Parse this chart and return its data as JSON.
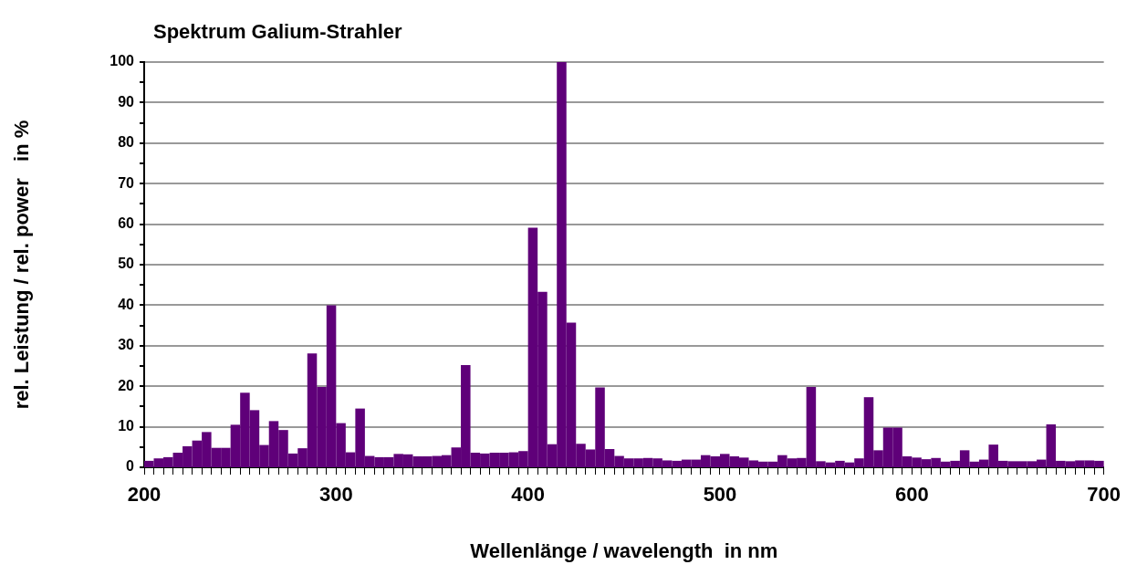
{
  "chart_data": {
    "type": "histogram",
    "title": "Spektrum Galium-Strahler",
    "xlabel": "Wellenlänge / wavelength  in nm",
    "ylabel": "rel. Leistung / rel. power   in %",
    "bins": [
      200,
      205,
      210,
      215,
      220,
      225,
      230,
      235,
      240,
      245,
      250,
      255,
      260,
      265,
      270,
      275,
      280,
      285,
      290,
      295,
      300,
      305,
      310,
      315,
      320,
      325,
      330,
      335,
      340,
      345,
      350,
      355,
      360,
      365,
      370,
      375,
      380,
      385,
      390,
      395,
      400,
      405,
      410,
      415,
      420,
      425,
      430,
      435,
      440,
      445,
      450,
      455,
      460,
      465,
      470,
      475,
      480,
      485,
      490,
      495,
      500,
      505,
      510,
      515,
      520,
      525,
      530,
      535,
      540,
      545,
      550,
      555,
      560,
      565,
      570,
      575,
      580,
      585,
      590,
      595,
      600,
      605,
      610,
      615,
      620,
      625,
      630,
      635,
      640,
      645,
      650,
      655,
      660,
      665,
      670,
      675,
      680,
      685,
      690,
      695,
      700
    ],
    "values": [
      1.6,
      2.2,
      2.5,
      3.6,
      5.2,
      6.6,
      8.7,
      4.8,
      4.8,
      10.5,
      18.4,
      14.1,
      5.5,
      11.4,
      9.2,
      3.4,
      4.7,
      28.1,
      19.8,
      40,
      10.9,
      3.7,
      14.5,
      2.8,
      2.5,
      2.5,
      3.3,
      3.2,
      2.7,
      2.7,
      2.8,
      3,
      4.9,
      25.2,
      3.6,
      3.4,
      3.6,
      3.6,
      3.7,
      4,
      59.1,
      43.3,
      5.7,
      100,
      35.7,
      5.8,
      4.4,
      19.7,
      4.5,
      2.8,
      2.2,
      2.2,
      2.3,
      2.2,
      1.7,
      1.6,
      1.9,
      1.9,
      3,
      2.7,
      3.3,
      2.7,
      2.4,
      1.7,
      1.4,
      1.4,
      3,
      2.2,
      2.3,
      19.8,
      1.5,
      1.2,
      1.6,
      1.2,
      2.2,
      17.3,
      4.2,
      9.8,
      9.8,
      2.7,
      2.4,
      2,
      2.3,
      1.4,
      1.6,
      4.2,
      1.4,
      1.9,
      5.6,
      1.6,
      1.5,
      1.5,
      1.5,
      1.9,
      10.6,
      1.6,
      1.5,
      1.7,
      1.7,
      1.6
    ],
    "color": "#5f0079",
    "xlim": [
      200,
      700
    ],
    "xticks": [
      200,
      {
        "value": 205,
        "label": null
      },
      {
        "value": 210,
        "label": null
      },
      {
        "value": 215,
        "label": null
      },
      {
        "value": 220,
        "label": null
      },
      {
        "value": 225,
        "label": null
      },
      {
        "value": 230,
        "label": null
      },
      {
        "value": 235,
        "label": null
      },
      {
        "value": 240,
        "label": null
      },
      {
        "value": 245,
        "label": null
      },
      {
        "value": 250,
        "label": null
      },
      {
        "value": 255,
        "label": null
      },
      {
        "value": 260,
        "label": null
      },
      {
        "value": 265,
        "label": null
      },
      {
        "value": 270,
        "label": null
      },
      {
        "value": 275,
        "label": null
      },
      {
        "value": 280,
        "label": null
      },
      {
        "value": 285,
        "label": null
      },
      {
        "value": 290,
        "label": null
      },
      {
        "value": 295,
        "label": null
      },
      300,
      {
        "value": 305,
        "label": null
      },
      {
        "value": 310,
        "label": null
      },
      {
        "value": 315,
        "label": null
      },
      {
        "value": 320,
        "label": null
      },
      {
        "value": 325,
        "label": null
      },
      {
        "value": 330,
        "label": null
      },
      {
        "value": 335,
        "label": null
      },
      {
        "value": 340,
        "label": null
      },
      {
        "value": 345,
        "label": null
      },
      {
        "value": 350,
        "label": null
      },
      {
        "value": 355,
        "label": null
      },
      {
        "value": 360,
        "label": null
      },
      {
        "value": 365,
        "label": null
      },
      {
        "value": 370,
        "label": null
      },
      {
        "value": 375,
        "label": null
      },
      {
        "value": 380,
        "label": null
      },
      {
        "value": 385,
        "label": null
      },
      {
        "value": 390,
        "label": null
      },
      {
        "value": 395,
        "label": null
      },
      400,
      {
        "value": 405,
        "label": null
      },
      {
        "value": 410,
        "label": null
      },
      {
        "value": 415,
        "label": null
      },
      {
        "value": 420,
        "label": null
      },
      {
        "value": 425,
        "label": null
      },
      {
        "value": 430,
        "label": null
      },
      {
        "value": 435,
        "label": null
      },
      {
        "value": 440,
        "label": null
      },
      {
        "value": 445,
        "label": null
      },
      {
        "value": 450,
        "label": null
      },
      {
        "value": 455,
        "label": null
      },
      {
        "value": 460,
        "label": null
      },
      {
        "value": 465,
        "label": null
      },
      {
        "value": 470,
        "label": null
      },
      {
        "value": 475,
        "label": null
      },
      {
        "value": 480,
        "label": null
      },
      {
        "value": 485,
        "label": null
      },
      {
        "value": 490,
        "label": null
      },
      {
        "value": 495,
        "label": null
      },
      500,
      {
        "value": 505,
        "label": null
      },
      {
        "value": 510,
        "label": null
      },
      {
        "value": 515,
        "label": null
      },
      {
        "value": 520,
        "label": null
      },
      {
        "value": 525,
        "label": null
      },
      {
        "value": 530,
        "label": null
      },
      {
        "value": 535,
        "label": null
      },
      {
        "value": 540,
        "label": null
      },
      {
        "value": 545,
        "label": null
      },
      {
        "value": 550,
        "label": null
      },
      {
        "value": 555,
        "label": null
      },
      {
        "value": 560,
        "label": null
      },
      {
        "value": 565,
        "label": null
      },
      {
        "value": 570,
        "label": null
      },
      {
        "value": 575,
        "label": null
      },
      {
        "value": 580,
        "label": null
      },
      {
        "value": 585,
        "label": null
      },
      {
        "value": 590,
        "label": null
      },
      {
        "value": 595,
        "label": null
      },
      600,
      {
        "value": 605,
        "label": null
      },
      {
        "value": 610,
        "label": null
      },
      {
        "value": 615,
        "label": null
      },
      {
        "value": 620,
        "label": null
      },
      {
        "value": 625,
        "label": null
      },
      {
        "value": 630,
        "label": null
      },
      {
        "value": 635,
        "label": null
      },
      {
        "value": 640,
        "label": null
      },
      {
        "value": 645,
        "label": null
      },
      {
        "value": 650,
        "label": null
      },
      {
        "value": 655,
        "label": null
      },
      {
        "value": 660,
        "label": null
      },
      {
        "value": 665,
        "label": null
      },
      {
        "value": 670,
        "label": null
      },
      {
        "value": 675,
        "label": null
      },
      {
        "value": 680,
        "label": null
      },
      {
        "value": 685,
        "label": null
      },
      {
        "value": 690,
        "label": null
      },
      {
        "value": 695,
        "label": null
      },
      700
    ],
    "ylim": [
      0,
      100
    ],
    "yticks": [
      0,
      {
        "value": 5,
        "label": null
      },
      10,
      {
        "value": 15,
        "label": null
      },
      20,
      {
        "value": 25,
        "label": null
      },
      30,
      {
        "value": 35,
        "label": null
      },
      40,
      {
        "value": 45,
        "label": null
      },
      50,
      {
        "value": 55,
        "label": null
      },
      60,
      {
        "value": 65,
        "label": null
      },
      70,
      {
        "value": 75,
        "label": null
      },
      80,
      {
        "value": 85,
        "label": null
      },
      90,
      {
        "value": 95,
        "label": null
      },
      100
    ],
    "grid": "y",
    "legend": false
  }
}
